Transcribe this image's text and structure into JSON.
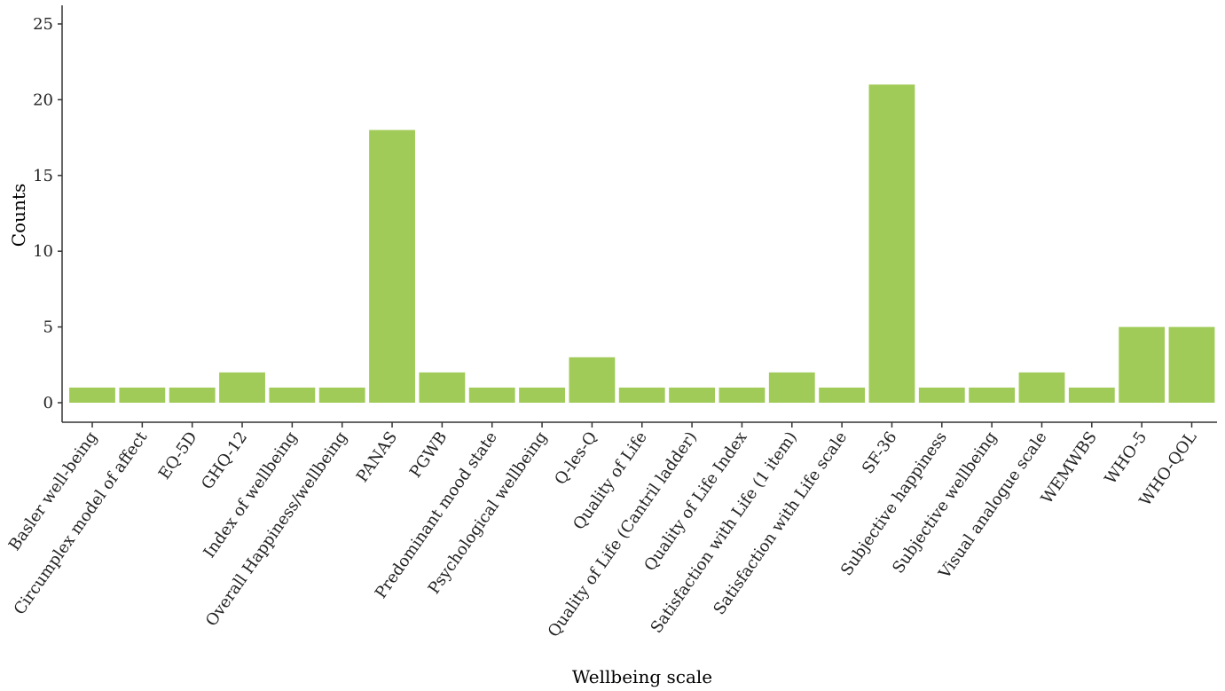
{
  "chart_data": {
    "type": "bar",
    "categories": [
      "Basler well-being",
      "Circumplex model of affect",
      "EQ-5D",
      "GHQ-12",
      "Index of wellbeing",
      "Overall Happiness/wellbeing",
      "PANAS",
      "PGWB",
      "Predominant mood state",
      "Psychological wellbeing",
      "Q-les-Q",
      "Quality of Life",
      "Quality of Life (Cantril ladder)",
      "Quality of Life Index",
      "Satisfaction with Life (1 item)",
      "Satisfaction with Life scale",
      "SF-36",
      "Subjective happiness",
      "Subjective wellbeing",
      "Visual analogue scale",
      "WEMWBS",
      "WHO-5",
      "WHO-QOL"
    ],
    "values": [
      1,
      1,
      1,
      2,
      1,
      1,
      18,
      2,
      1,
      1,
      3,
      1,
      1,
      1,
      2,
      1,
      21,
      1,
      1,
      2,
      1,
      5,
      5
    ],
    "title": "",
    "xlabel": "Wellbeing scale",
    "ylabel": "Counts",
    "ylim": [
      0,
      25
    ],
    "yticks": [
      0,
      5,
      10,
      15,
      20,
      25
    ],
    "grid": false,
    "colors": {
      "bar": "#a1cb58",
      "axis": "#333333",
      "text": "#222222"
    }
  }
}
